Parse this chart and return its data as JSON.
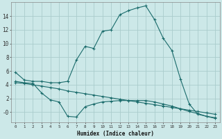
{
  "xlabel": "Humidex (Indice chaleur)",
  "bg_color": "#cce8e8",
  "grid_color": "#aacccc",
  "line_color": "#1a6b6b",
  "line1_x": [
    0,
    1,
    2,
    3,
    4,
    5,
    6,
    7,
    8,
    9,
    10,
    11,
    12,
    13,
    14,
    15,
    16,
    17,
    18,
    19,
    20,
    21,
    22,
    23
  ],
  "line1_y": [
    5.8,
    4.7,
    4.5,
    4.5,
    4.3,
    4.3,
    4.5,
    7.6,
    9.6,
    9.3,
    11.8,
    12.0,
    14.2,
    14.8,
    15.2,
    15.5,
    13.5,
    10.8,
    9.0,
    4.8,
    1.2,
    -0.3,
    -0.6,
    -0.8
  ],
  "line2_x": [
    0,
    1,
    2,
    3,
    4,
    5,
    6,
    7,
    8,
    9,
    10,
    11,
    12,
    13,
    14,
    15,
    16,
    17,
    18,
    19,
    20,
    21,
    22,
    23
  ],
  "line2_y": [
    4.5,
    4.3,
    4.2,
    2.8,
    1.8,
    1.5,
    -0.6,
    -0.7,
    0.8,
    1.2,
    1.5,
    1.6,
    1.7,
    1.7,
    1.7,
    1.7,
    1.5,
    1.2,
    0.9,
    0.5,
    0.1,
    -0.2,
    -0.6,
    -0.9
  ],
  "line3_x": [
    0,
    1,
    2,
    3,
    4,
    5,
    6,
    7,
    8,
    9,
    10,
    11,
    12,
    13,
    14,
    15,
    16,
    17,
    18,
    19,
    20,
    21,
    22,
    23
  ],
  "line3_y": [
    4.3,
    4.2,
    4.0,
    3.8,
    3.6,
    3.4,
    3.1,
    2.9,
    2.7,
    2.5,
    2.3,
    2.1,
    1.9,
    1.7,
    1.5,
    1.3,
    1.1,
    0.9,
    0.7,
    0.5,
    0.3,
    0.1,
    -0.1,
    -0.3
  ],
  "xlim": [
    0,
    23
  ],
  "ylim": [
    -1.5,
    16
  ],
  "yticks": [
    0,
    2,
    4,
    6,
    8,
    10,
    12,
    14
  ],
  "ytick_labels": [
    "-0",
    "2",
    "4",
    "6",
    "8",
    "10",
    "12",
    "14"
  ],
  "xticks": [
    0,
    1,
    2,
    3,
    4,
    5,
    6,
    7,
    8,
    9,
    10,
    11,
    12,
    13,
    14,
    15,
    16,
    17,
    18,
    19,
    20,
    21,
    22,
    23
  ],
  "xtick_labels": [
    "0",
    "1",
    "2",
    "3",
    "4",
    "5",
    "6",
    "7",
    "8",
    "9",
    "10",
    "11",
    "12",
    "13",
    "14",
    "15",
    "16",
    "17",
    "18",
    "19",
    "20",
    "21",
    "22",
    "23"
  ]
}
